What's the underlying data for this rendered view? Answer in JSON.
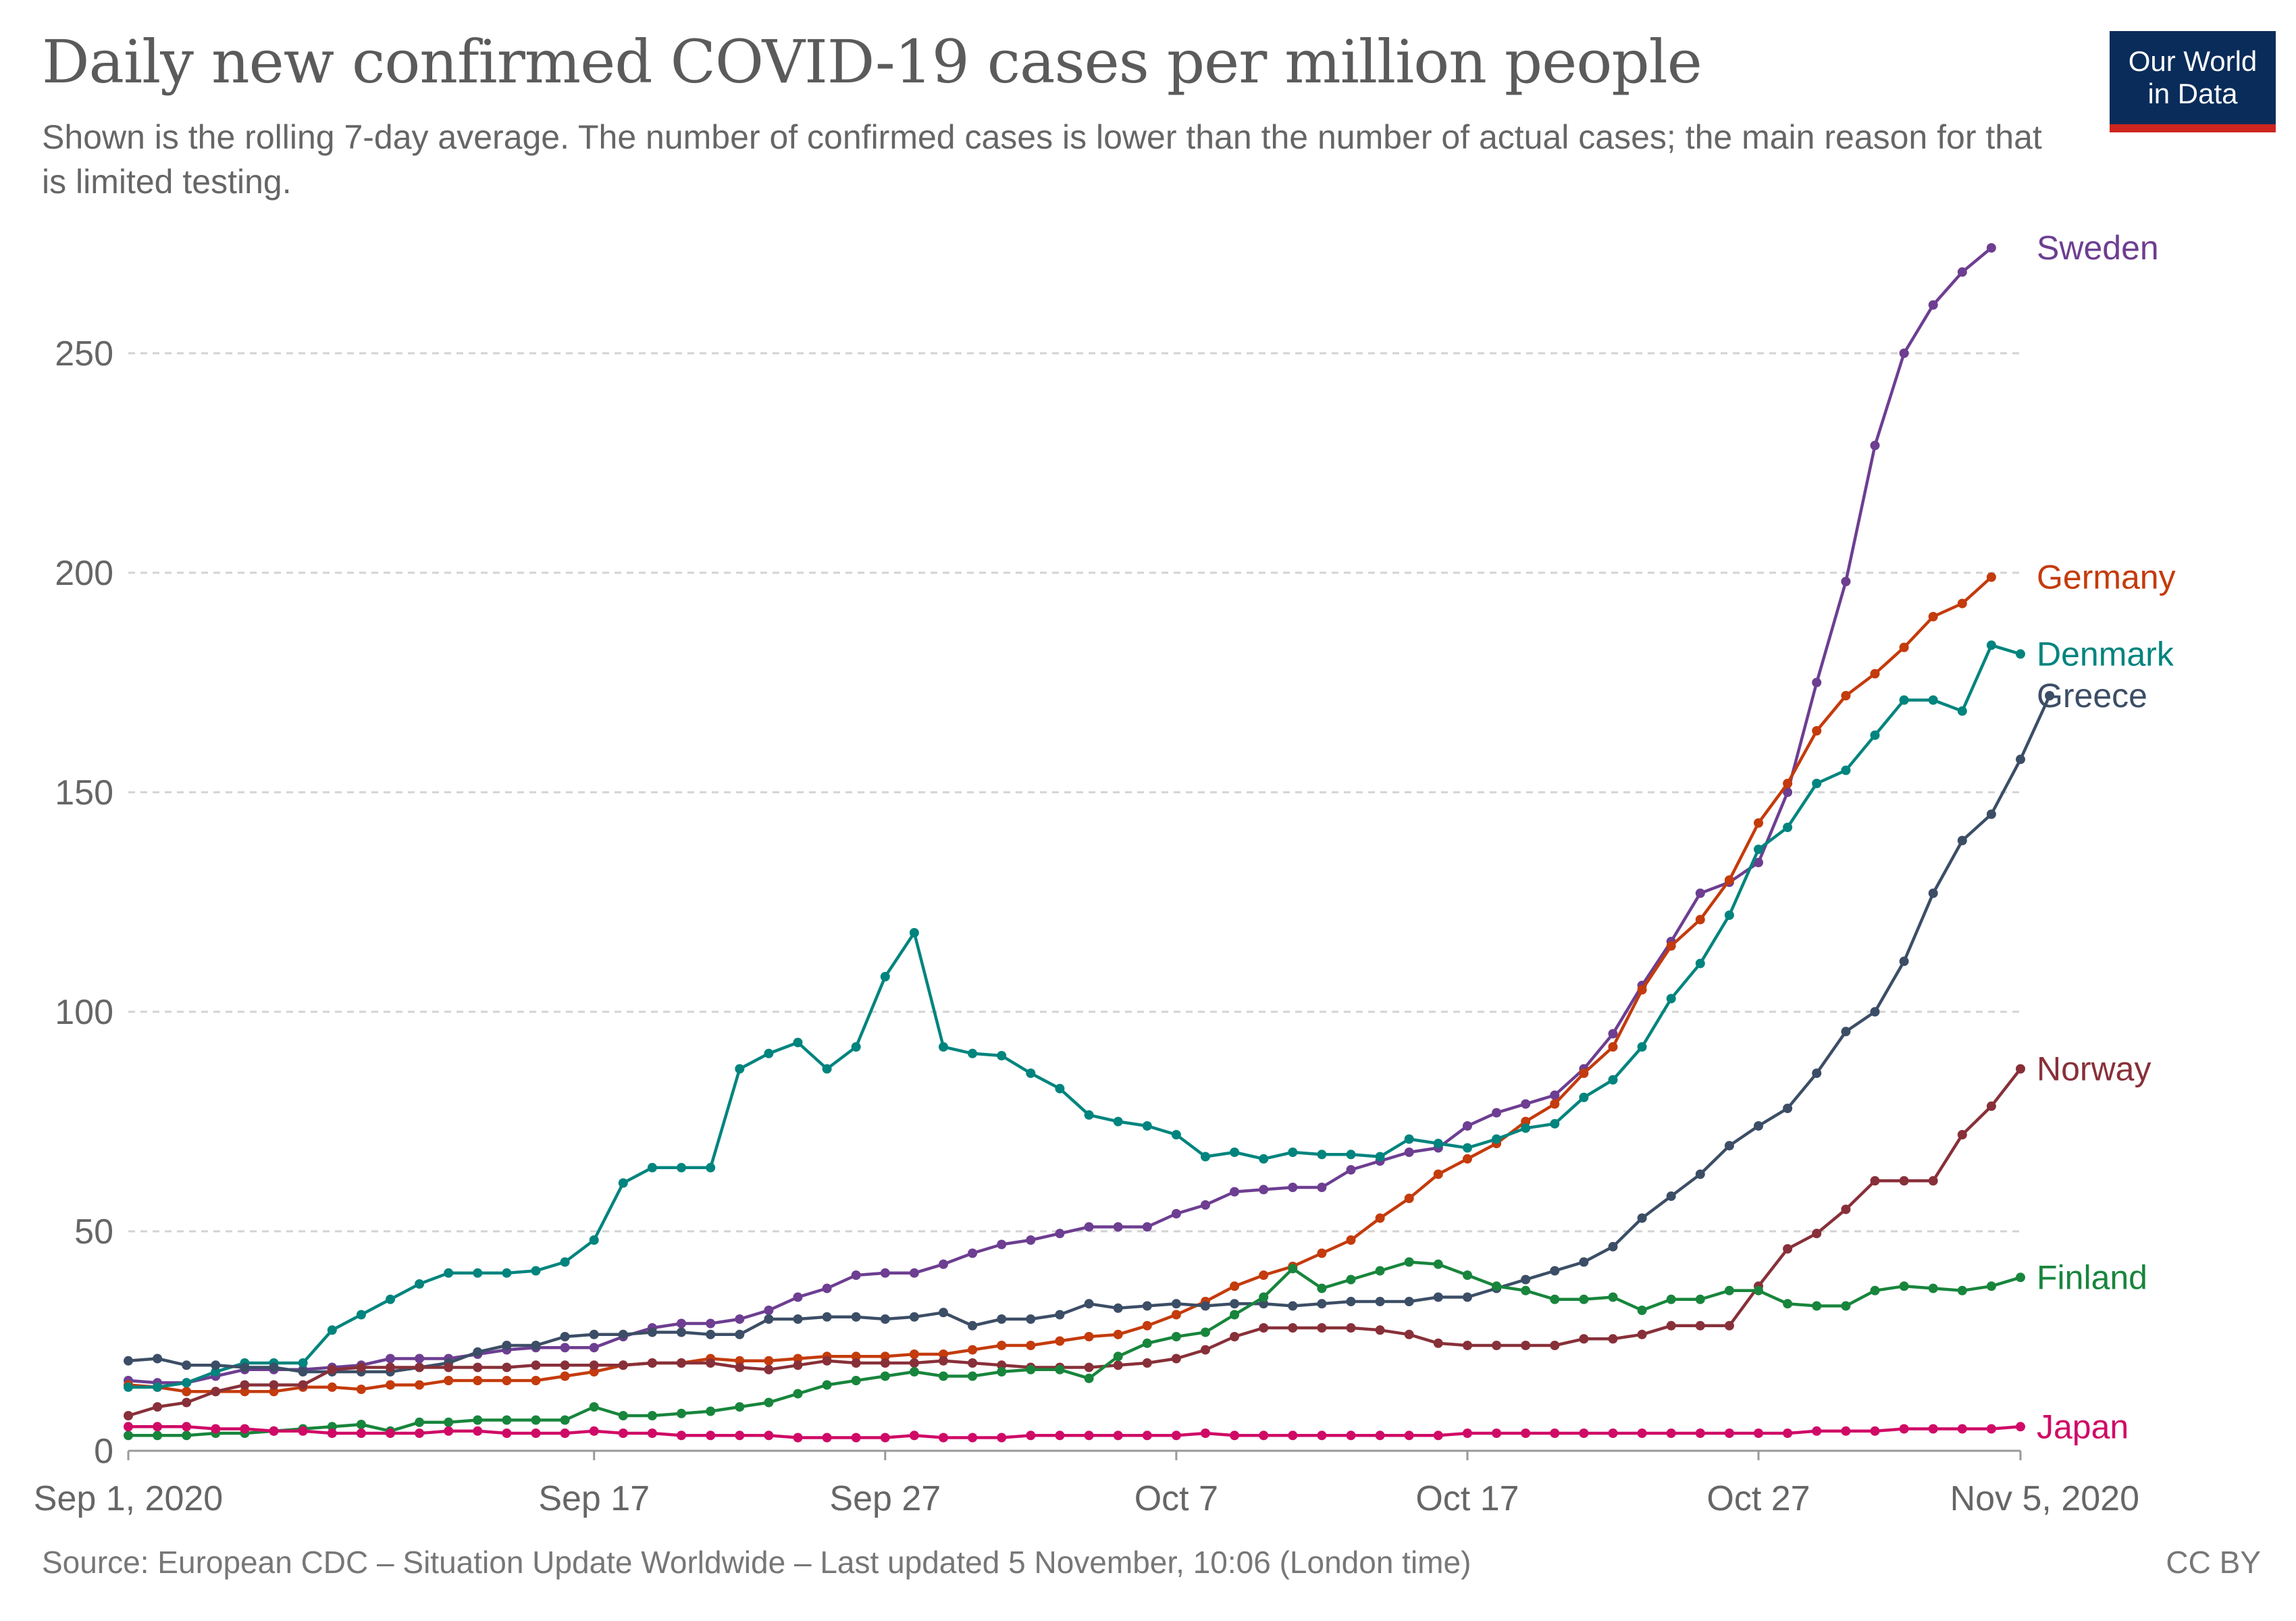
{
  "header": {
    "title": "Daily new confirmed COVID-19 cases per million people",
    "subtitle": "Shown is the rolling 7-day average. The number of confirmed cases is lower than the number of actual cases; the main reason for that is limited testing."
  },
  "logo": {
    "line1": "Our World",
    "line2": "in Data",
    "bg_color": "#0a2c5a",
    "accent_color": "#ce261e"
  },
  "footer": {
    "source": "Source: European CDC – Situation Update Worldwide – Last updated 5 November, 10:06 (London time)",
    "license": "CC BY"
  },
  "chart_data": {
    "type": "line",
    "title": "Daily new confirmed COVID-19 cases per million people",
    "x_range": [
      "2020-09-01",
      "2020-11-05"
    ],
    "ylim": [
      0,
      275
    ],
    "yticks": [
      0,
      50,
      100,
      150,
      200,
      250
    ],
    "grid": "horizontal dashed",
    "legend": "line end labels at right",
    "x_tick_labels": [
      {
        "date": "2020-09-01",
        "label": "Sep 1, 2020"
      },
      {
        "date": "2020-09-17",
        "label": "Sep 17"
      },
      {
        "date": "2020-09-27",
        "label": "Sep 27"
      },
      {
        "date": "2020-10-07",
        "label": "Oct 7"
      },
      {
        "date": "2020-10-17",
        "label": "Oct 17"
      },
      {
        "date": "2020-10-27",
        "label": "Oct 27"
      },
      {
        "date": "2020-11-05",
        "label": "Nov 5, 2020"
      }
    ],
    "series": [
      {
        "name": "Sweden",
        "color": "#6d3e91",
        "start_date": "2020-09-01",
        "values": [
          16,
          15.5,
          15.5,
          17,
          18.5,
          18.5,
          18.5,
          19,
          19.5,
          21,
          21,
          21,
          22,
          23,
          23.5,
          23.5,
          23.5,
          26,
          28,
          29,
          29,
          30,
          32,
          35,
          37,
          40,
          40.5,
          40.5,
          42.5,
          45,
          47,
          48,
          49.5,
          51,
          51,
          51,
          54,
          56,
          59,
          59.5,
          60,
          60,
          64,
          66,
          68,
          69,
          74,
          77,
          79,
          81,
          87,
          95,
          106,
          116,
          127,
          129.5,
          134,
          150,
          175,
          198,
          229,
          250,
          261,
          268.5,
          274
        ]
      },
      {
        "name": "Germany",
        "color": "#c43b0c",
        "start_date": "2020-09-01",
        "values": [
          15,
          14.5,
          13.5,
          13.5,
          13.5,
          13.5,
          14.5,
          14.5,
          14,
          15,
          15,
          16,
          16,
          16,
          16,
          17,
          18,
          19.5,
          20,
          20,
          21,
          20.5,
          20.5,
          21,
          21.5,
          21.5,
          21.5,
          22,
          22,
          23,
          24,
          24,
          25,
          26,
          26.5,
          28.5,
          31,
          34,
          37.5,
          40,
          42,
          45,
          48,
          53,
          57.5,
          63,
          66.5,
          70,
          75,
          79,
          86,
          92,
          105,
          115,
          121,
          130,
          143,
          152,
          164,
          172,
          177,
          183,
          190,
          193,
          199
        ]
      },
      {
        "name": "Denmark",
        "color": "#00847e",
        "start_date": "2020-09-01",
        "values": [
          14.5,
          14.5,
          15.5,
          18,
          20,
          20,
          20,
          27.5,
          31,
          34.5,
          38,
          40.5,
          40.5,
          40.5,
          41,
          43,
          48,
          61,
          64.5,
          64.5,
          64.5,
          87,
          90.5,
          93,
          87,
          92,
          108,
          118,
          92,
          90.5,
          90,
          86,
          82.5,
          76.5,
          75,
          74,
          72,
          67,
          68,
          66.5,
          68,
          67.5,
          67.5,
          67,
          71,
          70,
          69,
          71,
          73.5,
          74.5,
          80.5,
          84.5,
          92,
          103,
          111,
          122,
          137,
          142,
          152,
          155,
          163,
          171,
          171,
          168.5,
          183.5,
          181.5
        ]
      },
      {
        "name": "Greece",
        "color": "#3c4e66",
        "start_date": "2020-09-01",
        "values": [
          20.5,
          21,
          19.5,
          19.5,
          19,
          19,
          18,
          18,
          18,
          18,
          19,
          20,
          22.5,
          24,
          24,
          26,
          26.5,
          26.5,
          27,
          27,
          26.5,
          26.5,
          30,
          30,
          30.5,
          30.5,
          30,
          30.5,
          31.5,
          28.5,
          30,
          30,
          31,
          33.5,
          32.5,
          33,
          33.5,
          33,
          33.5,
          33.5,
          33,
          33.5,
          34,
          34,
          34,
          35,
          35,
          37,
          39,
          41,
          43,
          46.5,
          53,
          58,
          63,
          69.5,
          74,
          78,
          86,
          95.5,
          100,
          111.5,
          127,
          139,
          145,
          157.5,
          172
        ]
      },
      {
        "name": "Norway",
        "color": "#883039",
        "start_date": "2020-09-01",
        "values": [
          8,
          10,
          11,
          13.5,
          15,
          15,
          15,
          18.5,
          19,
          19,
          19,
          19,
          19,
          19,
          19.5,
          19.5,
          19.5,
          19.5,
          20,
          20,
          20,
          19,
          18.5,
          19.5,
          20.5,
          20,
          20,
          20,
          20.5,
          20,
          19.5,
          19,
          19,
          19,
          19.5,
          20,
          21,
          23,
          26,
          28,
          28,
          28,
          28,
          27.5,
          26.5,
          24.5,
          24,
          24,
          24,
          24,
          25.5,
          25.5,
          26.5,
          28.5,
          28.5,
          28.5,
          37.5,
          46,
          49.5,
          55,
          61.5,
          61.5,
          61.5,
          72,
          78.5,
          87
        ]
      },
      {
        "name": "Finland",
        "color": "#18853c",
        "start_date": "2020-09-01",
        "values": [
          3.5,
          3.5,
          3.5,
          4,
          4,
          4.5,
          5,
          5.5,
          6,
          4.5,
          6.5,
          6.5,
          7,
          7,
          7,
          7,
          10,
          8,
          8,
          8.5,
          9,
          10,
          11,
          13,
          15,
          16,
          17,
          18,
          17,
          17,
          18,
          18.5,
          18.5,
          16.5,
          21.5,
          24.5,
          26,
          27,
          31,
          35,
          41.5,
          37,
          39,
          41,
          43,
          42.5,
          40,
          37.5,
          36.5,
          34.5,
          34.5,
          35,
          32,
          34.5,
          34.5,
          36.5,
          36.5,
          33.5,
          33,
          33,
          36.5,
          37.5,
          37,
          36.5,
          37.5,
          39.5
        ]
      },
      {
        "name": "Japan",
        "color": "#cf0a66",
        "start_date": "2020-09-01",
        "values": [
          5.5,
          5.5,
          5.5,
          5,
          5,
          4.5,
          4.5,
          4,
          4,
          4,
          4,
          4.5,
          4.5,
          4,
          4,
          4,
          4.5,
          4,
          4,
          3.5,
          3.5,
          3.5,
          3.5,
          3,
          3,
          3,
          3,
          3.5,
          3,
          3,
          3,
          3.5,
          3.5,
          3.5,
          3.5,
          3.5,
          3.5,
          4,
          3.5,
          3.5,
          3.5,
          3.5,
          3.5,
          3.5,
          3.5,
          3.5,
          4,
          4,
          4,
          4,
          4,
          4,
          4,
          4,
          4,
          4,
          4,
          4,
          4.5,
          4.5,
          4.5,
          5,
          5,
          5,
          5,
          5.5
        ]
      }
    ]
  }
}
